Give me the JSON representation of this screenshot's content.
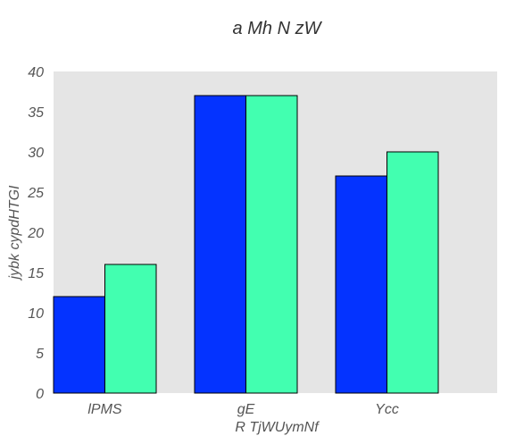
{
  "chart_data": {
    "type": "bar",
    "title": "a Mh N zW",
    "xlabel": "R TjWUymNf",
    "ylabel": "jybk cypdHTGI",
    "categories": [
      "lPMS",
      "gE",
      "Ycc"
    ],
    "series": [
      {
        "values": [
          12,
          37,
          27
        ],
        "color": "#0433ff"
      },
      {
        "values": [
          16,
          37,
          30
        ],
        "color": "#42ffb0"
      }
    ],
    "ylim": [
      0,
      40
    ],
    "yticks": [
      0,
      5,
      10,
      15,
      20,
      25,
      30,
      35,
      40
    ],
    "grid": false,
    "plot_background": "#e5e5e5",
    "bar_edge_color": "#000000"
  }
}
